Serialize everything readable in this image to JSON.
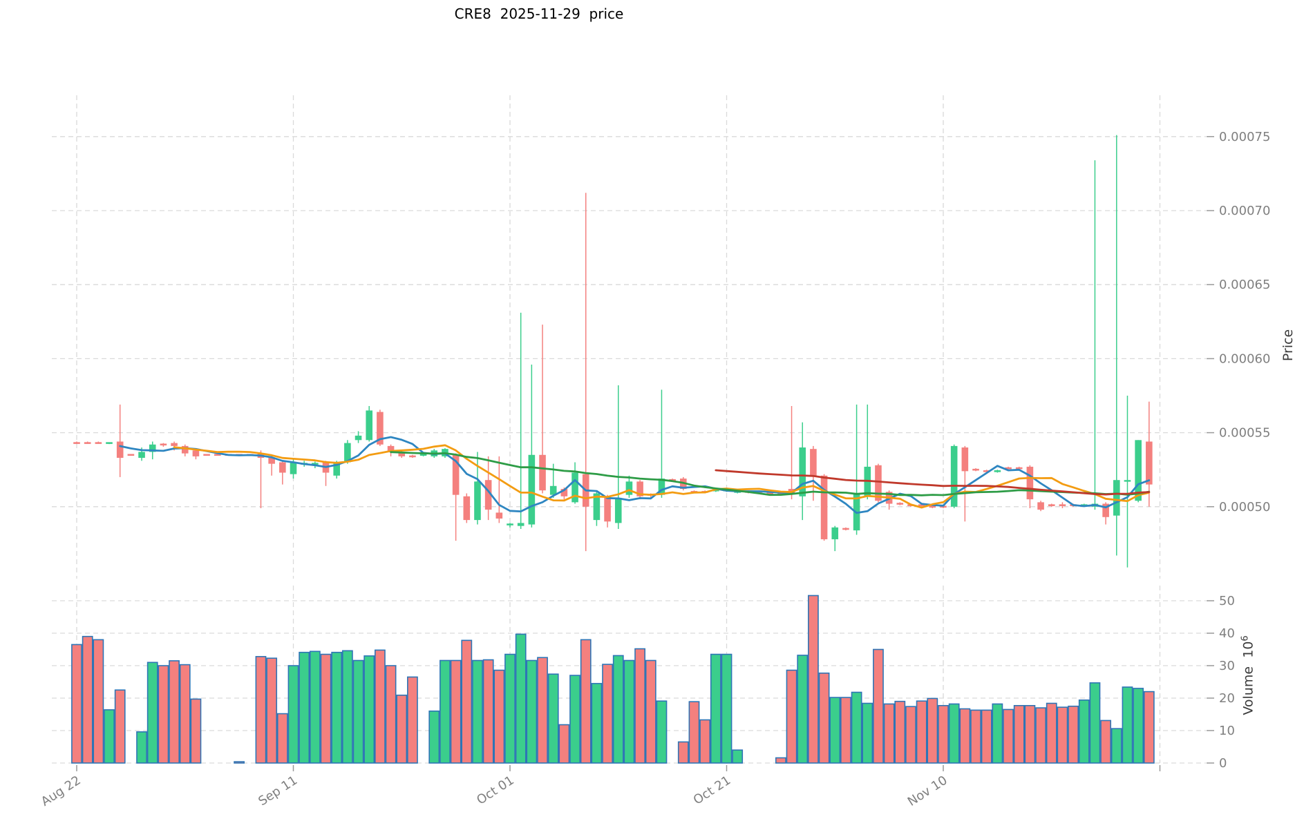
{
  "title": "CRE8  2025-11-29  price",
  "price_axis": {
    "label": "Price",
    "ticks": [
      "0.00075",
      "0.00070",
      "0.00065",
      "0.00060",
      "0.00055",
      "0.00050"
    ],
    "tick_values_micro": [
      750,
      700,
      650,
      600,
      550,
      500
    ]
  },
  "volume_axis": {
    "label": "Volume",
    "scale_base": "10",
    "scale_exp": "6",
    "ticks": [
      "0",
      "10",
      "20",
      "30",
      "40",
      "50"
    ],
    "tick_values": [
      0,
      10,
      20,
      30,
      40,
      50
    ]
  },
  "x_axis": {
    "ticks": [
      {
        "label": "Aug 22",
        "index": 0
      },
      {
        "label": "Sep 11",
        "index": 20
      },
      {
        "label": "Oct 01",
        "index": 40
      },
      {
        "label": "Oct 21",
        "index": 60
      },
      {
        "label": "Nov 10",
        "index": 80
      },
      {
        "label": "",
        "index": 100
      }
    ]
  },
  "colors": {
    "up": "#3BCE8C",
    "down": "#F4807E",
    "volume_edge": "#2E75B6",
    "grid": "#D9D9D9",
    "tick_text": "#7F7F7F",
    "tick_mark": "#999999",
    "ma5": "#2E86C1",
    "ma10": "#F39C12",
    "ma30": "#2D9C46",
    "ma60": "#C0392B"
  },
  "chart_data": {
    "type": "candlestick+volume",
    "title": "CRE8  2025-11-29  price",
    "date_range": [
      "2025-08-22",
      "2025-11-29"
    ],
    "grid": true,
    "legend": false,
    "price_ylim_micro": [
      452,
      758
    ],
    "volume_ylim_millions": [
      0,
      55
    ],
    "price_unit": "1e-6",
    "volume_unit": "1e6",
    "mavs": [
      {
        "name": "MA5",
        "period": 5,
        "color_key": "ma5"
      },
      {
        "name": "MA10",
        "period": 10,
        "color_key": "ma10"
      },
      {
        "name": "MA30",
        "period": 30,
        "color_key": "ma30"
      },
      {
        "name": "MA60",
        "period": 60,
        "color_key": "ma60"
      }
    ],
    "ohlcv_columns": [
      "open_micro",
      "high_micro",
      "low_micro",
      "close_micro",
      "volume_millions"
    ],
    "ohlcv": [
      [
        543.1,
        544,
        542.5,
        542.9,
        36.5
      ],
      [
        543.1,
        544,
        542.5,
        542.9,
        39
      ],
      [
        543.1,
        544,
        542.5,
        542.9,
        38
      ],
      [
        542.9,
        543.5,
        542.3,
        543.1,
        16.4
      ],
      [
        544,
        569,
        520,
        533,
        22.5
      ],
      [
        535.1,
        535.6,
        534.6,
        534.9,
        0
      ],
      [
        533,
        540,
        531,
        537,
        9.6
      ],
      [
        537,
        544,
        532,
        542,
        31
      ],
      [
        542.2,
        543,
        540.5,
        541.8,
        30
      ],
      [
        543,
        544,
        538,
        541,
        31.5
      ],
      [
        541,
        542,
        534,
        536,
        30.3
      ],
      [
        538,
        539,
        532,
        534,
        19.7
      ],
      [
        535.1,
        535.6,
        534.6,
        534.9,
        0
      ],
      [
        535.1,
        535.6,
        534.6,
        534.9,
        0
      ],
      [
        535.1,
        535.6,
        534.6,
        534.9,
        0
      ],
      [
        535.1,
        535.6,
        534.6,
        534.9,
        0.4
      ],
      [
        535.1,
        535.6,
        534.6,
        534.9,
        0
      ],
      [
        536,
        538,
        499,
        533,
        32.8
      ],
      [
        533,
        534.5,
        521,
        529,
        32.3
      ],
      [
        530,
        531,
        515,
        523,
        15.2
      ],
      [
        522,
        532,
        519,
        530,
        30
      ],
      [
        528.9,
        531,
        527,
        529.1,
        34.1
      ],
      [
        528.9,
        530.5,
        526,
        529.1,
        34.4
      ],
      [
        530,
        531,
        514,
        523,
        33.5
      ],
      [
        521,
        531,
        519,
        530,
        34.1
      ],
      [
        530,
        545,
        529,
        543,
        34.6
      ],
      [
        545,
        551,
        543,
        548,
        31.6
      ],
      [
        545,
        568,
        544,
        565,
        33
      ],
      [
        564,
        565.5,
        541,
        542,
        34.8
      ],
      [
        541,
        542,
        534,
        537,
        30
      ],
      [
        537,
        538,
        533,
        534,
        20.9
      ],
      [
        534.1,
        535,
        533,
        533.9,
        26.5
      ],
      [
        534.9,
        536,
        534,
        535.1,
        0
      ],
      [
        534,
        539,
        533,
        538,
        16
      ],
      [
        534,
        539.5,
        533,
        539,
        31.6
      ],
      [
        535,
        536,
        477,
        508,
        31.6
      ],
      [
        507,
        509,
        489,
        491,
        37.8
      ],
      [
        491,
        537,
        488,
        517,
        31.6
      ],
      [
        518,
        534,
        491,
        498,
        31.8
      ],
      [
        496,
        534,
        489,
        492,
        28.6
      ],
      [
        487.9,
        489,
        486,
        488.1,
        33.5
      ],
      [
        487,
        631,
        485,
        489,
        39.7
      ],
      [
        488,
        596,
        486,
        535,
        31.6
      ],
      [
        535,
        623,
        509,
        511,
        32.5
      ],
      [
        508,
        529,
        506,
        514,
        27.4
      ],
      [
        512,
        513,
        505,
        507,
        11.8
      ],
      [
        503,
        530,
        502,
        523,
        27
      ],
      [
        522,
        712,
        470,
        500,
        38
      ],
      [
        491,
        510,
        487,
        509,
        24.5
      ],
      [
        507,
        508,
        486,
        490,
        30.4
      ],
      [
        489,
        582,
        485,
        506,
        33.1
      ],
      [
        508,
        521,
        506,
        517,
        31.6
      ],
      [
        517,
        518,
        505,
        507,
        35.2
      ],
      [
        508.1,
        509,
        506,
        507.9,
        31.6
      ],
      [
        508,
        579,
        506,
        519,
        19.1
      ],
      [
        518.1,
        519,
        517,
        517.9,
        0
      ],
      [
        519,
        520,
        511,
        512,
        6.5
      ],
      [
        510.1,
        511,
        509,
        509.9,
        18.9
      ],
      [
        510.1,
        511,
        509,
        509.9,
        13.3
      ],
      [
        510.9,
        512,
        510,
        511.1,
        33.5
      ],
      [
        510.9,
        512,
        510,
        511.1,
        33.5
      ],
      [
        509.9,
        511,
        509,
        510.1,
        4
      ],
      [
        510.1,
        511,
        509,
        509.9,
        0
      ],
      [
        510.1,
        511,
        509,
        509.9,
        0
      ],
      [
        509.1,
        510,
        508,
        508.9,
        0
      ],
      [
        509.1,
        510,
        508,
        508.9,
        1.6
      ],
      [
        512,
        568,
        505,
        509,
        28.6
      ],
      [
        507,
        557,
        491,
        540,
        33.2
      ],
      [
        539,
        541,
        504,
        521,
        51.6
      ],
      [
        521,
        522,
        477,
        478,
        27.7
      ],
      [
        478,
        487,
        470,
        486,
        20.2
      ],
      [
        485.1,
        486,
        484,
        484.9,
        20.2
      ],
      [
        484,
        569,
        481,
        509,
        21.8
      ],
      [
        507,
        569,
        505,
        527,
        18.4
      ],
      [
        528,
        529,
        503,
        504,
        35
      ],
      [
        510,
        511,
        498,
        502,
        18.2
      ],
      [
        502.1,
        503,
        501,
        501.9,
        19
      ],
      [
        501.1,
        502,
        500,
        500.9,
        17.4
      ],
      [
        501.1,
        502,
        500,
        500.9,
        19.1
      ],
      [
        500.1,
        501,
        499,
        499.9,
        19.9
      ],
      [
        500.1,
        501,
        499,
        499.9,
        17.7
      ],
      [
        500,
        542,
        499,
        541,
        18.2
      ],
      [
        540,
        541,
        490,
        524,
        16.7
      ],
      [
        525.1,
        526,
        524,
        524.9,
        16.3
      ],
      [
        524.1,
        525,
        523,
        523.9,
        16.3
      ],
      [
        523.9,
        525,
        523,
        524.1,
        18.2
      ],
      [
        526.1,
        527,
        525,
        525.9,
        16.5
      ],
      [
        526.1,
        527,
        525,
        525.9,
        17.7
      ],
      [
        527,
        528,
        499,
        505,
        17.7
      ],
      [
        503,
        504,
        497,
        498,
        17
      ],
      [
        501.1,
        502,
        500,
        500.9,
        18.4
      ],
      [
        501.1,
        503,
        499,
        500.9,
        17.2
      ],
      [
        501.1,
        502,
        500,
        500.9,
        17.5
      ],
      [
        500.9,
        502,
        500,
        501.1,
        19.4
      ],
      [
        500,
        734,
        498,
        502,
        24.7
      ],
      [
        502,
        503,
        488,
        493,
        13.1
      ],
      [
        494,
        751,
        467,
        518,
        10.6
      ],
      [
        517,
        575,
        459,
        518,
        23.4
      ],
      [
        504,
        545,
        503,
        545,
        23
      ],
      [
        544,
        571,
        500,
        515,
        22
      ]
    ]
  }
}
